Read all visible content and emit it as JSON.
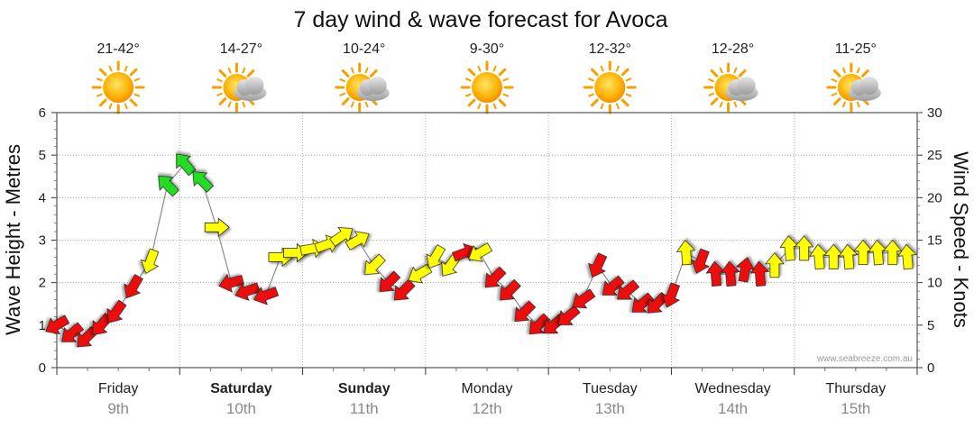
{
  "chart_data": {
    "type": "line",
    "title": "7 day wind & wave forecast for Avoca",
    "ylabel_left": "Wave Height - Metres",
    "ylabel_right": "Wind Speed - Knots",
    "ylim_left": [
      0,
      6
    ],
    "ylim_right": [
      0,
      30
    ],
    "yticks_left": [
      "0",
      "1",
      "2",
      "3",
      "4",
      "5",
      "6"
    ],
    "yticks_right": [
      "0",
      "5",
      "10",
      "15",
      "20",
      "25",
      "30"
    ],
    "grid": true,
    "credit": "www.seabreeze.com.au",
    "days": [
      {
        "day": "Friday",
        "date": "9th",
        "temps": "21-42°",
        "icon": "sun-icon",
        "bold": false
      },
      {
        "day": "Saturday",
        "date": "10th",
        "temps": "14-27°",
        "icon": "sun-cloud-icon",
        "bold": true
      },
      {
        "day": "Sunday",
        "date": "11th",
        "temps": "10-24°",
        "icon": "sun-cloud-icon",
        "bold": true
      },
      {
        "day": "Monday",
        "date": "12th",
        "temps": "9-30°",
        "icon": "sun-icon",
        "bold": false
      },
      {
        "day": "Tuesday",
        "date": "13th",
        "temps": "12-32°",
        "icon": "sun-icon",
        "bold": false
      },
      {
        "day": "Wednesday",
        "date": "14th",
        "temps": "12-28°",
        "icon": "sun-cloud-icon",
        "bold": false
      },
      {
        "day": "Thursday",
        "date": "15th",
        "temps": "11-25°",
        "icon": "sun-cloud-icon",
        "bold": false
      }
    ],
    "colors": {
      "green": "#22dd22",
      "yellow": "#ffff00",
      "red": "#ee1111",
      "line": "#8c8c8c",
      "outline": "#222222"
    },
    "series": [
      {
        "name": "Wind",
        "x": [
          0.0,
          0.12,
          0.24,
          0.36,
          0.48,
          0.62,
          0.76,
          0.9,
          1.04,
          1.18,
          1.3,
          1.42,
          1.55,
          1.7,
          1.82,
          1.94,
          2.08,
          2.2,
          2.32,
          2.45,
          2.58,
          2.7,
          2.82,
          2.95,
          3.08,
          3.2,
          3.32,
          3.44,
          3.56,
          3.68,
          3.8,
          3.92,
          4.04,
          4.16,
          4.28,
          4.4,
          4.52,
          4.64,
          4.76,
          4.88,
          5.0,
          5.12,
          5.24,
          5.36,
          5.48,
          5.6,
          5.72,
          5.84,
          5.96,
          6.08,
          6.2,
          6.32,
          6.44,
          6.56,
          6.68,
          6.8,
          6.92
        ],
        "values": [
          5,
          4,
          3.5,
          5,
          6.5,
          9.5,
          12.5,
          21.5,
          24,
          22,
          16.5,
          10,
          9,
          8.5,
          13,
          13.5,
          14,
          14.5,
          15.5,
          15,
          12,
          10,
          9,
          11,
          13,
          12,
          13.5,
          13.5,
          10.5,
          9,
          6.5,
          5,
          5,
          6,
          8,
          12,
          9.5,
          9,
          7.5,
          7.5,
          8.5,
          13.5,
          12.5,
          11,
          11,
          11.5,
          11,
          12,
          14,
          14,
          13,
          13,
          13,
          13.5,
          13.5,
          13.5,
          13
        ],
        "direction_deg": [
          240,
          230,
          225,
          220,
          215,
          210,
          200,
          315,
          320,
          315,
          90,
          255,
          250,
          250,
          90,
          90,
          80,
          70,
          55,
          60,
          225,
          225,
          225,
          240,
          210,
          215,
          70,
          240,
          225,
          225,
          225,
          225,
          230,
          230,
          235,
          205,
          230,
          230,
          230,
          225,
          200,
          355,
          200,
          355,
          355,
          10,
          355,
          0,
          355,
          0,
          355,
          0,
          355,
          0,
          355,
          0,
          355
        ],
        "color": [
          "red",
          "red",
          "red",
          "red",
          "red",
          "red",
          "yellow",
          "green",
          "green",
          "green",
          "yellow",
          "red",
          "red",
          "red",
          "yellow",
          "yellow",
          "yellow",
          "yellow",
          "yellow",
          "yellow",
          "yellow",
          "red",
          "red",
          "yellow",
          "yellow",
          "yellow",
          "red",
          "yellow",
          "red",
          "red",
          "red",
          "red",
          "red",
          "red",
          "red",
          "red",
          "red",
          "red",
          "red",
          "red",
          "red",
          "yellow",
          "red",
          "red",
          "red",
          "red",
          "red",
          "yellow",
          "yellow",
          "yellow",
          "yellow",
          "yellow",
          "yellow",
          "yellow",
          "yellow",
          "yellow",
          "yellow"
        ]
      }
    ]
  }
}
